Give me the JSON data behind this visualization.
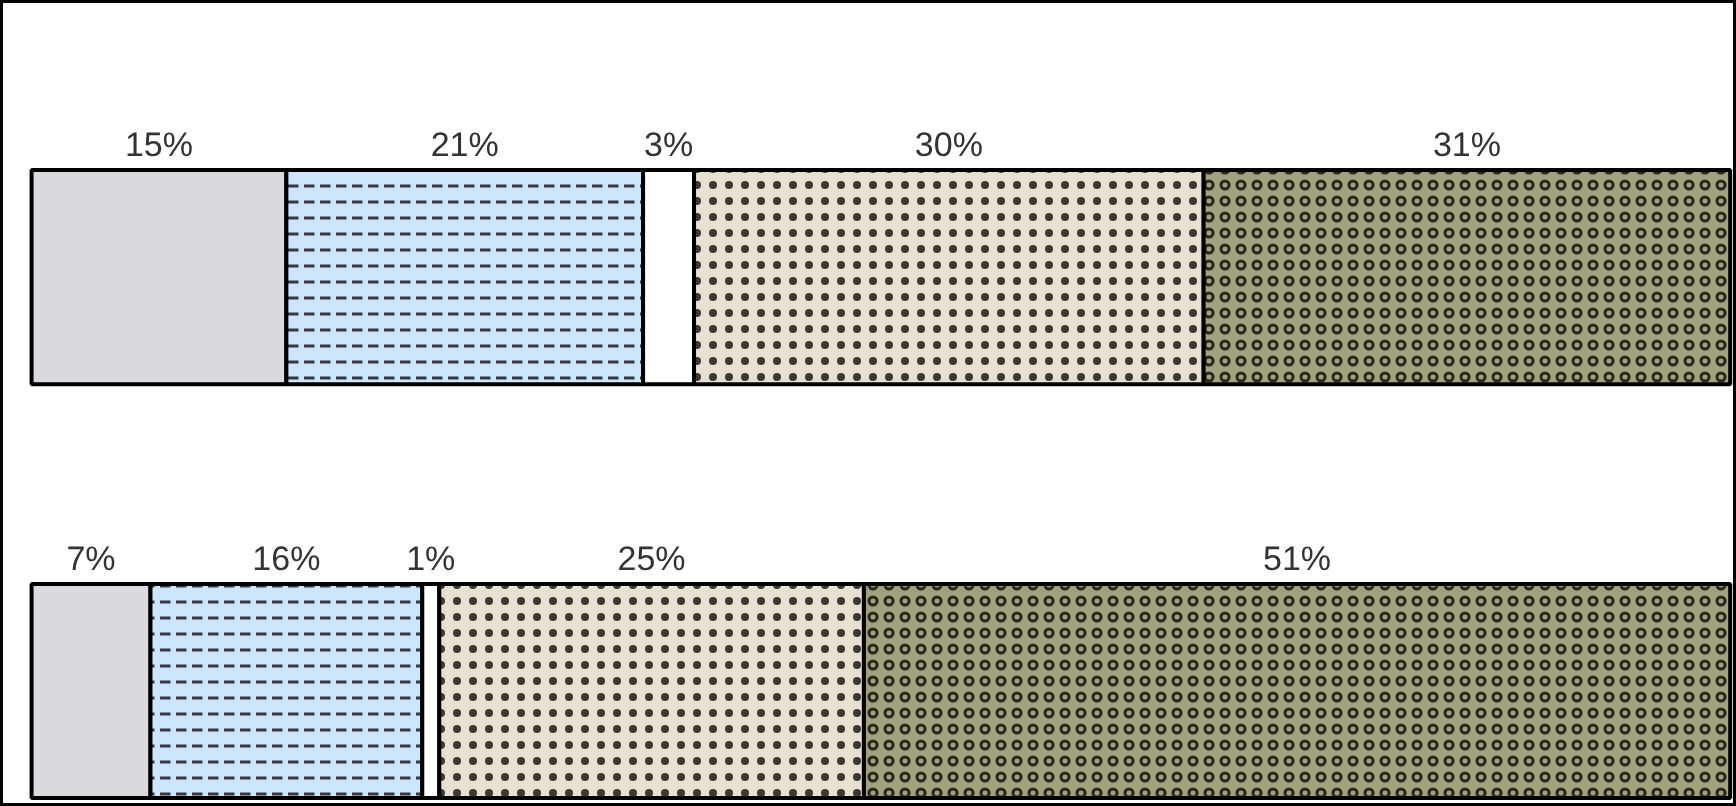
{
  "chart_data": {
    "type": "bar",
    "orientation": "horizontal",
    "stacked": true,
    "categories": [
      null,
      null
    ],
    "series": [
      {
        "color": "#d9d9de",
        "values": [
          15,
          7
        ],
        "value_labels": [
          "15%",
          "7%"
        ]
      },
      {
        "color": "#cce6ff",
        "values": [
          21,
          16
        ],
        "value_labels": [
          "21%",
          "16%"
        ]
      },
      {
        "color": "#ffffff",
        "values": [
          3,
          1
        ],
        "value_labels": [
          "3%",
          "1%"
        ]
      },
      {
        "color": "#e8e0d0",
        "values": [
          30,
          25
        ],
        "value_labels": [
          "30%",
          "25%"
        ]
      },
      {
        "color": "#a3a07c",
        "values": [
          31,
          51
        ],
        "value_labels": [
          "31%",
          "51%"
        ]
      }
    ]
  }
}
